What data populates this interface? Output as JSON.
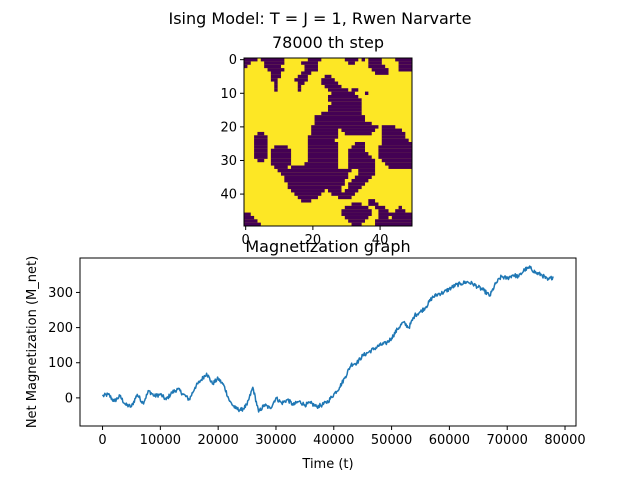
{
  "figure": {
    "suptitle": "Ising Model: T = J = 1, Rwen Narvarte"
  },
  "chart_data": [
    {
      "type": "heatmap",
      "title": "78000 th step",
      "grid_size": 50,
      "colors": {
        "spin_up": "#fde725",
        "spin_down": "#440154"
      },
      "x_ticks": [
        0,
        20,
        40
      ],
      "y_ticks": [
        0,
        10,
        20,
        30,
        40
      ],
      "down_runs": [
        [
          [
            0,
            3
          ],
          [
            5,
            11
          ],
          [
            19,
            22
          ],
          [
            30,
            33
          ],
          [
            35,
            35
          ],
          [
            37,
            40
          ],
          [
            45,
            49
          ]
        ],
        [
          [
            0,
            1
          ],
          [
            6,
            11
          ],
          [
            17,
            21
          ],
          [
            31,
            32
          ],
          [
            37,
            40
          ],
          [
            46,
            49
          ]
        ],
        [
          [
            0,
            0
          ],
          [
            6,
            10
          ],
          [
            18,
            21
          ],
          [
            37,
            41
          ],
          [
            46,
            49
          ]
        ],
        [
          [
            7,
            11
          ],
          [
            18,
            21
          ],
          [
            38,
            42
          ],
          [
            46,
            49
          ]
        ],
        [
          [
            8,
            10
          ],
          [
            17,
            19
          ],
          [
            39,
            42
          ]
        ],
        [
          [
            8,
            10
          ],
          [
            16,
            18
          ],
          [
            24,
            25
          ]
        ],
        [
          [
            8,
            9
          ],
          [
            15,
            18
          ],
          [
            23,
            26
          ]
        ],
        [
          [
            9,
            9
          ],
          [
            16,
            17
          ],
          [
            23,
            27
          ]
        ],
        [
          [
            9,
            9
          ],
          [
            16,
            16
          ],
          [
            24,
            28
          ]
        ],
        [
          [
            9,
            9
          ],
          [
            16,
            16
          ],
          [
            25,
            30
          ],
          [
            32,
            33
          ]
        ],
        [
          [
            26,
            32
          ],
          [
            36,
            36
          ]
        ],
        [
          [
            25,
            33
          ]
        ],
        [
          [
            25,
            34
          ]
        ],
        [
          [
            26,
            34
          ]
        ],
        [
          [
            25,
            34
          ]
        ],
        [
          [
            25,
            34
          ]
        ],
        [
          [
            23,
            34
          ]
        ],
        [
          [
            21,
            35
          ]
        ],
        [
          [
            21,
            35
          ]
        ],
        [
          [
            21,
            37
          ]
        ],
        [
          [
            20,
            39
          ],
          [
            41,
            44
          ]
        ],
        [
          [
            20,
            27
          ],
          [
            29,
            38
          ],
          [
            41,
            46
          ]
        ],
        [
          [
            4,
            5
          ],
          [
            20,
            27
          ],
          [
            30,
            37
          ],
          [
            41,
            47
          ]
        ],
        [
          [
            3,
            6
          ],
          [
            19,
            27
          ],
          [
            41,
            47
          ]
        ],
        [
          [
            3,
            6
          ],
          [
            19,
            26
          ],
          [
            41,
            48
          ]
        ],
        [
          [
            3,
            6
          ],
          [
            19,
            27
          ],
          [
            33,
            35
          ],
          [
            41,
            49
          ]
        ],
        [
          [
            3,
            6
          ],
          [
            9,
            12
          ],
          [
            19,
            27
          ],
          [
            32,
            35
          ],
          [
            40,
            49
          ]
        ],
        [
          [
            3,
            6
          ],
          [
            8,
            13
          ],
          [
            19,
            27
          ],
          [
            31,
            35
          ],
          [
            40,
            49
          ]
        ],
        [
          [
            3,
            6
          ],
          [
            8,
            13
          ],
          [
            19,
            27
          ],
          [
            31,
            36
          ],
          [
            40,
            49
          ]
        ],
        [
          [
            3,
            6
          ],
          [
            8,
            13
          ],
          [
            19,
            27
          ],
          [
            31,
            37
          ],
          [
            40,
            49
          ]
        ],
        [
          [
            4,
            5
          ],
          [
            8,
            13
          ],
          [
            19,
            27
          ],
          [
            31,
            38
          ],
          [
            41,
            49
          ]
        ],
        [
          [
            8,
            13
          ],
          [
            18,
            27
          ],
          [
            31,
            38
          ],
          [
            42,
            49
          ]
        ],
        [
          [
            9,
            12
          ],
          [
            14,
            27
          ],
          [
            31,
            38
          ],
          [
            43,
            49
          ]
        ],
        [
          [
            10,
            31
          ],
          [
            34,
            38
          ]
        ],
        [
          [
            11,
            30
          ],
          [
            34,
            38
          ]
        ],
        [
          [
            12,
            30
          ],
          [
            33,
            37
          ]
        ],
        [
          [
            12,
            29
          ],
          [
            32,
            36
          ]
        ],
        [
          [
            13,
            29
          ],
          [
            31,
            35
          ]
        ],
        [
          [
            13,
            28
          ],
          [
            31,
            34
          ]
        ],
        [
          [
            14,
            23
          ],
          [
            25,
            28
          ],
          [
            30,
            33
          ]
        ],
        [
          [
            15,
            22
          ],
          [
            26,
            32
          ]
        ],
        [
          [
            16,
            21
          ],
          [
            28,
            31
          ]
        ],
        [
          [
            17,
            19
          ],
          [
            37,
            38
          ]
        ],
        [
          [
            32,
            34
          ],
          [
            37,
            39
          ]
        ],
        [
          [
            30,
            36
          ],
          [
            39,
            41
          ],
          [
            46,
            46
          ]
        ],
        [
          [
            29,
            37
          ],
          [
            40,
            42
          ],
          [
            45,
            47
          ]
        ],
        [
          [
            0,
            1
          ],
          [
            29,
            37
          ],
          [
            40,
            49
          ]
        ],
        [
          [
            0,
            2
          ],
          [
            30,
            36
          ],
          [
            40,
            42
          ],
          [
            44,
            49
          ]
        ],
        [
          [
            0,
            3
          ],
          [
            31,
            35
          ],
          [
            39,
            49
          ]
        ],
        [
          [
            0,
            4
          ],
          [
            32,
            34
          ],
          [
            39,
            49
          ]
        ]
      ]
    },
    {
      "type": "line",
      "title": "Magnetization graph",
      "xlabel": "Time (t)",
      "ylabel": "Net Magnetization (M_net)",
      "xlim": [
        -3900,
        81900
      ],
      "ylim": [
        -80,
        398
      ],
      "x_ticks": [
        0,
        10000,
        20000,
        30000,
        40000,
        50000,
        60000,
        70000,
        80000
      ],
      "y_ticks": [
        0,
        100,
        200,
        300
      ],
      "color": "#1f77b4",
      "x": [
        0,
        1000,
        2000,
        3000,
        4000,
        5000,
        6000,
        7000,
        8000,
        9000,
        10000,
        11000,
        12000,
        13000,
        14000,
        15000,
        16000,
        17000,
        18000,
        19000,
        20000,
        21000,
        22000,
        23000,
        24000,
        25000,
        26000,
        27000,
        28000,
        29000,
        30000,
        31000,
        32000,
        33000,
        34000,
        35000,
        36000,
        37000,
        38000,
        39000,
        40000,
        41000,
        42000,
        43000,
        44000,
        45000,
        46000,
        47000,
        48000,
        49000,
        50000,
        51000,
        52000,
        53000,
        54000,
        55000,
        56000,
        57000,
        58000,
        59000,
        60000,
        61000,
        62000,
        63000,
        64000,
        65000,
        66000,
        67000,
        68000,
        69000,
        70000,
        71000,
        72000,
        73000,
        74000,
        75000,
        76000,
        77000,
        78000
      ],
      "values": [
        5,
        10,
        -10,
        5,
        -20,
        -25,
        10,
        -15,
        20,
        5,
        10,
        -5,
        15,
        25,
        10,
        -5,
        30,
        50,
        70,
        40,
        55,
        35,
        -10,
        -30,
        -35,
        -20,
        30,
        -40,
        -20,
        -30,
        0,
        -15,
        -5,
        -20,
        -10,
        -20,
        -15,
        -25,
        -20,
        -10,
        10,
        30,
        60,
        95,
        100,
        120,
        130,
        140,
        150,
        155,
        170,
        195,
        215,
        200,
        235,
        245,
        260,
        285,
        295,
        300,
        310,
        320,
        325,
        330,
        325,
        315,
        305,
        290,
        325,
        345,
        340,
        350,
        345,
        365,
        370,
        355,
        350,
        335,
        345
      ]
    }
  ]
}
